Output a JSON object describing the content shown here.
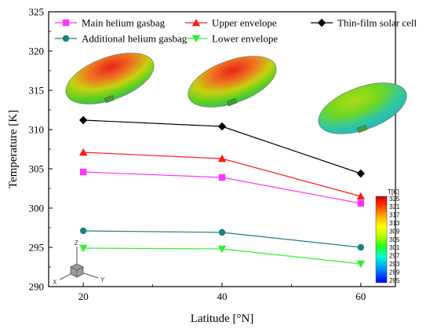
{
  "chart_data": {
    "type": "line",
    "title": "",
    "xlabel": "Latitude [°N]",
    "ylabel": "Temperature [K]",
    "x": [
      20,
      40,
      60
    ],
    "xticks": [
      20,
      40,
      60
    ],
    "xlim": [
      15,
      65
    ],
    "ylim": [
      290,
      325
    ],
    "yticks": [
      290,
      295,
      300,
      305,
      310,
      315,
      320,
      325
    ],
    "grid": false,
    "legend_position": "top",
    "series": [
      {
        "name": "Main helium gasbag",
        "values": [
          304.6,
          303.9,
          300.6
        ],
        "color": "#ff33ff",
        "marker": "square"
      },
      {
        "name": "Upper envelope",
        "values": [
          307.1,
          306.3,
          301.5
        ],
        "color": "#ff1a1a",
        "marker": "triangle-up"
      },
      {
        "name": "Thin-film solar cell",
        "values": [
          311.2,
          310.4,
          304.4
        ],
        "color": "#000000",
        "marker": "diamond"
      },
      {
        "name": "Additional helium gasbag",
        "values": [
          297.1,
          296.9,
          295.0
        ],
        "color": "#1a8080",
        "marker": "circle"
      },
      {
        "name": "Lower envelope",
        "values": [
          294.9,
          294.8,
          292.9
        ],
        "color": "#33ee33",
        "marker": "triangle-down"
      }
    ],
    "colorbar": {
      "title": "T[K]",
      "ticks": [
        "325",
        "321",
        "317",
        "313",
        "309",
        "305",
        "301",
        "297",
        "293",
        "289",
        "285"
      ]
    },
    "orientation_triad": {
      "axes": [
        "Z",
        "X",
        "Y"
      ]
    }
  }
}
